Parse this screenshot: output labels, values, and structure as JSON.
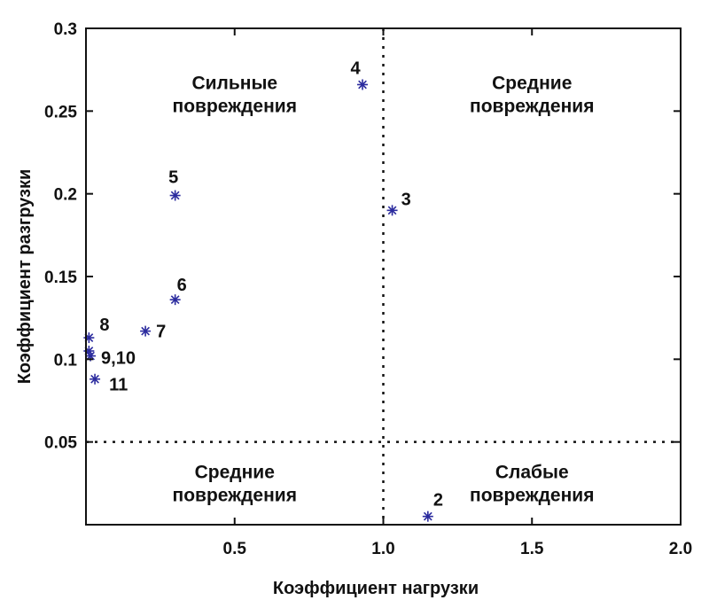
{
  "chart_data": {
    "type": "scatter",
    "title": "",
    "xlabel": "Коэффициент нагрузки",
    "ylabel": "Коэффициент разгрузки",
    "xlim": [
      0,
      2.0
    ],
    "ylim": [
      0,
      0.3
    ],
    "xticks": [
      0.5,
      1.0,
      1.5,
      2.0
    ],
    "xtick_labels": [
      "0.5",
      "1.0",
      "1.5",
      "2.0"
    ],
    "yticks": [
      0.05,
      0.1,
      0.15,
      0.2,
      0.25,
      0.3
    ],
    "ytick_labels": [
      "0.05",
      "0.1",
      "0.15",
      "0.2",
      "0.25",
      "0.3"
    ],
    "grid": false,
    "marker": "asterisk",
    "marker_color": "#2b2b9e",
    "reference_lines": [
      {
        "orientation": "vertical",
        "x": 1.0,
        "style": "dotted"
      },
      {
        "orientation": "horizontal",
        "y": 0.05,
        "style": "dotted"
      }
    ],
    "points": [
      {
        "label": "2",
        "x": 1.15,
        "y": 0.005
      },
      {
        "label": "3",
        "x": 1.03,
        "y": 0.19
      },
      {
        "label": "4",
        "x": 0.93,
        "y": 0.266
      },
      {
        "label": "5",
        "x": 0.3,
        "y": 0.199
      },
      {
        "label": "6",
        "x": 0.3,
        "y": 0.136
      },
      {
        "label": "7",
        "x": 0.2,
        "y": 0.117
      },
      {
        "label": "8",
        "x": 0.01,
        "y": 0.113
      },
      {
        "label": "",
        "x": 0.01,
        "y": 0.105
      },
      {
        "label": "9,10",
        "x": 0.015,
        "y": 0.102
      },
      {
        "label": "11",
        "x": 0.03,
        "y": 0.088
      }
    ],
    "regions": [
      {
        "line1": "Сильные",
        "line2": "повреждения",
        "x": 0.5,
        "y": 0.26
      },
      {
        "line1": "Средние",
        "line2": "повреждения",
        "x": 1.5,
        "y": 0.26
      },
      {
        "line1": "Средние",
        "line2": "повреждения",
        "x": 0.5,
        "y": 0.025
      },
      {
        "line1": "Слабые",
        "line2": "повреждения",
        "x": 1.5,
        "y": 0.025
      }
    ]
  }
}
